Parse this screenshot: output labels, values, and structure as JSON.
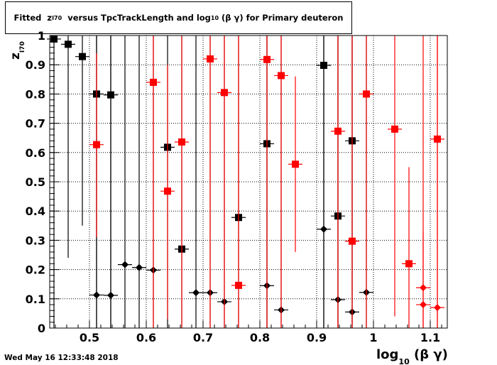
{
  "title": {
    "prefix": "Fitted  z",
    "z_sub": "I70",
    "middle": "  versus TpcTrackLength and log",
    "log_sub": "10",
    "suffix": " (β γ) for Primary deuteron"
  },
  "timestamp": "Wed May 16 12:33:48 2018",
  "chart_data": {
    "type": "scatter",
    "xlabel": "log",
    "xlabel_sub": "10",
    "xlabel_suffix": " (β γ)",
    "ylabel": "z",
    "ylabel_sub": "I70",
    "xlim": [
      0.43,
      1.13
    ],
    "ylim": [
      0,
      1
    ],
    "x_ticks": [
      {
        "v": 0.5,
        "label": "0.5"
      },
      {
        "v": 0.6,
        "label": "0.6"
      },
      {
        "v": 0.7,
        "label": "0.7"
      },
      {
        "v": 0.8,
        "label": "0.8"
      },
      {
        "v": 0.9,
        "label": "0.9"
      },
      {
        "v": 1.0,
        "label": "1"
      },
      {
        "v": 1.1,
        "label": "1.1"
      }
    ],
    "y_ticks": [
      {
        "v": 0,
        "label": "0"
      },
      {
        "v": 0.1,
        "label": "0.1"
      },
      {
        "v": 0.2,
        "label": "0.2"
      },
      {
        "v": 0.3,
        "label": "0.3"
      },
      {
        "v": 0.4,
        "label": "0.4"
      },
      {
        "v": 0.5,
        "label": "0.5"
      },
      {
        "v": 0.6,
        "label": "0.6"
      },
      {
        "v": 0.7,
        "label": "0.7"
      },
      {
        "v": 0.8,
        "label": "0.8"
      },
      {
        "v": 0.9,
        "label": "0.9"
      },
      {
        "v": 1.0,
        "label": "1"
      }
    ],
    "grid": true,
    "colors": {
      "black": "#000000",
      "red": "#ff0000"
    },
    "series": [
      {
        "color": "#000000",
        "marker": "square",
        "points": [
          {
            "x": 0.4375,
            "y": 0.988,
            "xerr": 0.0125,
            "ylo": 0,
            "yhi": 1
          },
          {
            "x": 0.4625,
            "y": 0.97,
            "xerr": 0.0125,
            "ylo": 0.24,
            "yhi": 1
          },
          {
            "x": 0.4875,
            "y": 0.928,
            "xerr": 0.0125,
            "ylo": 0.35,
            "yhi": 1
          },
          {
            "x": 0.5125,
            "y": 0.8,
            "xerr": 0.0125,
            "ylo": 0,
            "yhi": 1
          },
          {
            "x": 0.5375,
            "y": 0.797,
            "xerr": 0.0125,
            "ylo": 0,
            "yhi": 1
          },
          {
            "x": 0.6375,
            "y": 0.618,
            "xerr": 0.0125,
            "ylo": 0,
            "yhi": 1
          },
          {
            "x": 0.6625,
            "y": 0.27,
            "xerr": 0.0125,
            "ylo": 0,
            "yhi": 1
          },
          {
            "x": 0.7625,
            "y": 0.378,
            "xerr": 0.0125,
            "ylo": 0,
            "yhi": 1
          },
          {
            "x": 0.8125,
            "y": 0.63,
            "xerr": 0.0125,
            "ylo": 0,
            "yhi": 1
          },
          {
            "x": 0.9125,
            "y": 0.898,
            "xerr": 0.0125,
            "ylo": 0,
            "yhi": 1
          },
          {
            "x": 0.9375,
            "y": 0.383,
            "xerr": 0.0125,
            "ylo": 0,
            "yhi": 1
          },
          {
            "x": 0.9625,
            "y": 0.64,
            "xerr": 0.0125,
            "ylo": 0,
            "yhi": 1
          }
        ]
      },
      {
        "color": "#000000",
        "marker": "diamond",
        "points": [
          {
            "x": 0.5125,
            "y": 0.113,
            "xerr": 0.0125,
            "ylo": 0,
            "yhi": 1
          },
          {
            "x": 0.5375,
            "y": 0.112,
            "xerr": 0.0125,
            "ylo": 0,
            "yhi": 1
          },
          {
            "x": 0.5625,
            "y": 0.217,
            "xerr": 0.0125,
            "ylo": 0,
            "yhi": 1
          },
          {
            "x": 0.5875,
            "y": 0.207,
            "xerr": 0.0125,
            "ylo": 0,
            "yhi": 1
          },
          {
            "x": 0.6125,
            "y": 0.198,
            "xerr": 0.0125,
            "ylo": 0,
            "yhi": 1
          },
          {
            "x": 0.6875,
            "y": 0.121,
            "xerr": 0.0125,
            "ylo": 0,
            "yhi": 1
          },
          {
            "x": 0.7125,
            "y": 0.121,
            "xerr": 0.0125,
            "ylo": 0,
            "yhi": 1
          },
          {
            "x": 0.7375,
            "y": 0.09,
            "xerr": 0.0125,
            "ylo": 0,
            "yhi": 1
          },
          {
            "x": 0.8125,
            "y": 0.145,
            "xerr": 0.0125,
            "ylo": 0,
            "yhi": 1
          },
          {
            "x": 0.8375,
            "y": 0.062,
            "xerr": 0.0125,
            "ylo": 0,
            "yhi": 1
          },
          {
            "x": 0.9125,
            "y": 0.338,
            "xerr": 0.0125,
            "ylo": 0,
            "yhi": 1
          },
          {
            "x": 0.9375,
            "y": 0.097,
            "xerr": 0.0125,
            "ylo": 0,
            "yhi": 1
          },
          {
            "x": 0.9625,
            "y": 0.055,
            "xerr": 0.0125,
            "ylo": 0,
            "yhi": 1
          },
          {
            "x": 0.9875,
            "y": 0.122,
            "xerr": 0.0125,
            "ylo": 0,
            "yhi": 1
          }
        ]
      },
      {
        "color": "#ff0000",
        "marker": "square",
        "points": [
          {
            "x": 0.5125,
            "y": 0.627,
            "xerr": 0.0125,
            "ylo": 0.31,
            "yhi": 0.94
          },
          {
            "x": 0.6125,
            "y": 0.84,
            "xerr": 0.0125,
            "ylo": 0,
            "yhi": 1
          },
          {
            "x": 0.6375,
            "y": 0.468,
            "xerr": 0.0125,
            "ylo": 0.03,
            "yhi": 0.9
          },
          {
            "x": 0.6625,
            "y": 0.636,
            "xerr": 0.0125,
            "ylo": 0,
            "yhi": 1
          },
          {
            "x": 0.7125,
            "y": 0.92,
            "xerr": 0.0125,
            "ylo": 0,
            "yhi": 1
          },
          {
            "x": 0.7375,
            "y": 0.805,
            "xerr": 0.0125,
            "ylo": 0,
            "yhi": 1
          },
          {
            "x": 0.7625,
            "y": 0.146,
            "xerr": 0.0125,
            "ylo": 0,
            "yhi": 1
          },
          {
            "x": 0.8125,
            "y": 0.918,
            "xerr": 0.0125,
            "ylo": 0,
            "yhi": 1
          },
          {
            "x": 0.8375,
            "y": 0.863,
            "xerr": 0.0125,
            "ylo": 0,
            "yhi": 1
          },
          {
            "x": 0.8625,
            "y": 0.56,
            "xerr": 0.0125,
            "ylo": 0.26,
            "yhi": 0.86
          },
          {
            "x": 0.9375,
            "y": 0.673,
            "xerr": 0.0125,
            "ylo": 0,
            "yhi": 1
          },
          {
            "x": 0.9625,
            "y": 0.297,
            "xerr": 0.0125,
            "ylo": 0,
            "yhi": 1
          },
          {
            "x": 0.9875,
            "y": 0.8,
            "xerr": 0.0125,
            "ylo": 0,
            "yhi": 1
          },
          {
            "x": 1.0375,
            "y": 0.68,
            "xerr": 0.0125,
            "ylo": 0.04,
            "yhi": 1
          },
          {
            "x": 1.0625,
            "y": 0.22,
            "xerr": 0.0125,
            "ylo": 0,
            "yhi": 0.55
          },
          {
            "x": 1.1125,
            "y": 0.646,
            "xerr": 0.0125,
            "ylo": 0,
            "yhi": 1
          }
        ]
      },
      {
        "color": "#ff0000",
        "marker": "diamond",
        "points": [
          {
            "x": 1.0875,
            "y": 0.138,
            "xerr": 0.0125,
            "ylo": 0,
            "yhi": 0.33
          },
          {
            "x": 1.0875,
            "y": 0.08,
            "xerr": 0.0125,
            "ylo": 0,
            "yhi": 1
          },
          {
            "x": 1.1125,
            "y": 0.07,
            "xerr": 0.0125,
            "ylo": 0,
            "yhi": 1
          }
        ]
      }
    ]
  }
}
